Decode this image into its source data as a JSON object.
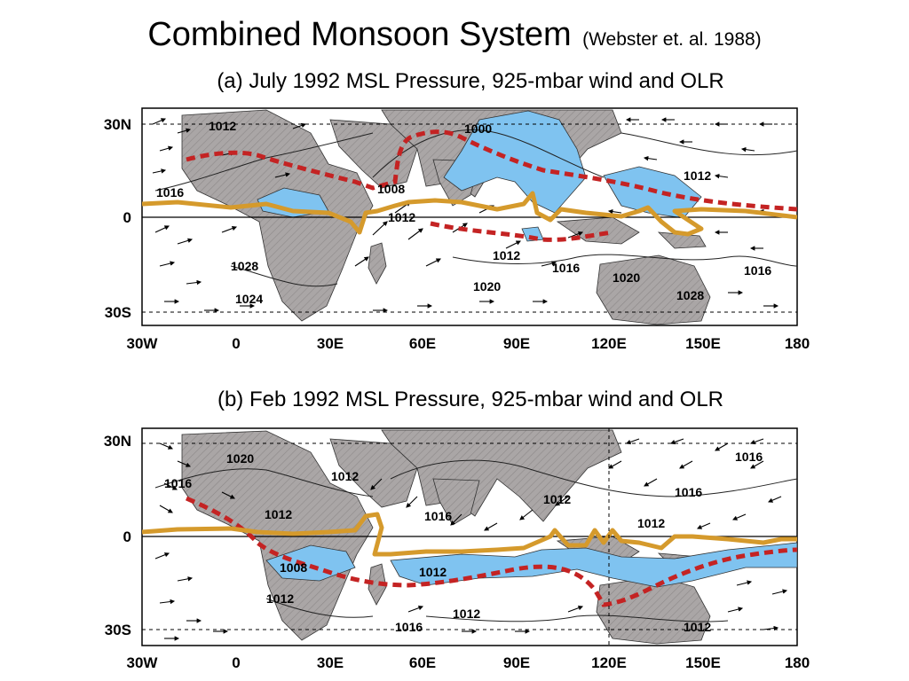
{
  "slide": {
    "title": "Combined Monsoon System",
    "citation": "(Webster et. al. 1988)"
  },
  "colors": {
    "land": "#aaa6a6",
    "convection_olr": "#7fc3f0",
    "itcz_line": "#d59a2c",
    "monsoon_trough": "#c42323",
    "arrows": "#000000"
  },
  "panels": [
    {
      "id": "a",
      "title": "(a) July 1992 MSL Pressure, 925-mbar  wind and OLR",
      "y_ticks": [
        "30N",
        "0",
        "30S"
      ],
      "x_ticks": [
        "30W",
        "0",
        "30E",
        "60E",
        "90E",
        "120E",
        "150E",
        "180"
      ],
      "contour_labels": [
        "1012",
        "1000",
        "1012",
        "1016",
        "1008",
        "1012",
        "1028",
        "1024",
        "1020",
        "1012",
        "1016",
        "1020",
        "1028",
        "1016"
      ]
    },
    {
      "id": "b",
      "title": "(b) Feb 1992 MSL Pressure, 925-mbar  wind and OLR",
      "y_ticks": [
        "30N",
        "0",
        "30S"
      ],
      "x_ticks": [
        "30W",
        "0",
        "30E",
        "60E",
        "90E",
        "120E",
        "150E",
        "180"
      ],
      "contour_labels": [
        "1020",
        "1016",
        "1016",
        "1012",
        "1012",
        "1016",
        "1012",
        "1016",
        "1012",
        "1008",
        "1012",
        "1012",
        "1012",
        "1016",
        "1012"
      ]
    }
  ]
}
